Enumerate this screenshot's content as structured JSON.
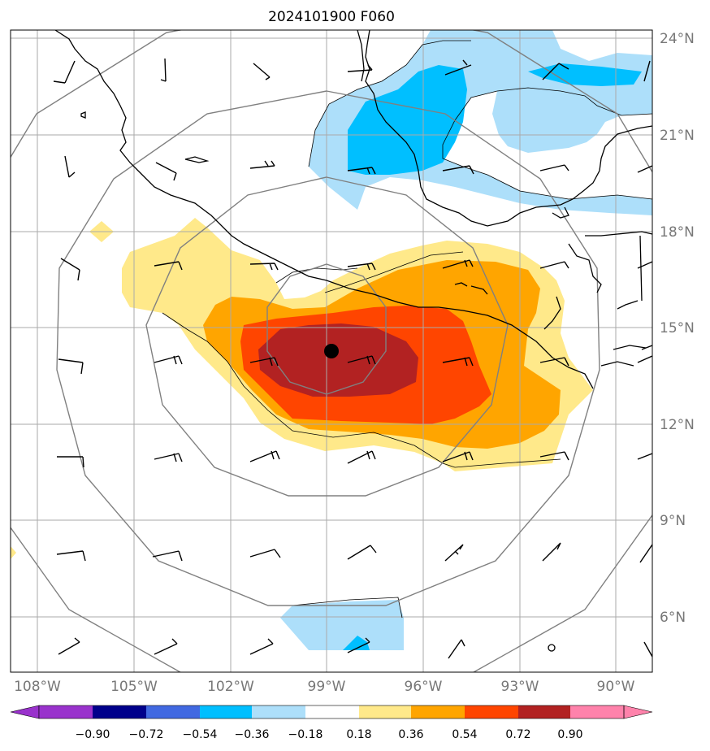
{
  "title": "2024101900 F060",
  "colors": {
    "c_neg090": "#9932CC",
    "c_neg072": "#00008B",
    "c_neg054": "#4169E1",
    "c_neg036": "#00BFFF",
    "c_neg018": "#ADDFFA",
    "c_zero": "#FFFFFF",
    "c_pos018": "#FFE98A",
    "c_pos036": "#FFA500",
    "c_pos054": "#FF4500",
    "c_pos072": "#B22222",
    "c_pos090": "#FF82AB",
    "grid": "#AAAAAA",
    "range_rings": "#808080",
    "coast": "#000000"
  },
  "lat_labels": [
    "24°N",
    "21°N",
    "18°N",
    "15°N",
    "12°N",
    "9°N",
    "6°N"
  ],
  "lon_labels": [
    "108°W",
    "105°W",
    "102°W",
    "99°W",
    "96°W",
    "93°W",
    "90°W"
  ],
  "colorbar": {
    "ticks": [
      "−0.90",
      "−0.72",
      "−0.54",
      "−0.36",
      "−0.18",
      "0.18",
      "0.36",
      "0.54",
      "0.72",
      "0.90"
    ]
  },
  "map": {
    "center_marker": "storm-center-dot",
    "features": [
      "coastline",
      "country-borders",
      "range-rings",
      "wind-barbs",
      "filled-contours"
    ]
  }
}
